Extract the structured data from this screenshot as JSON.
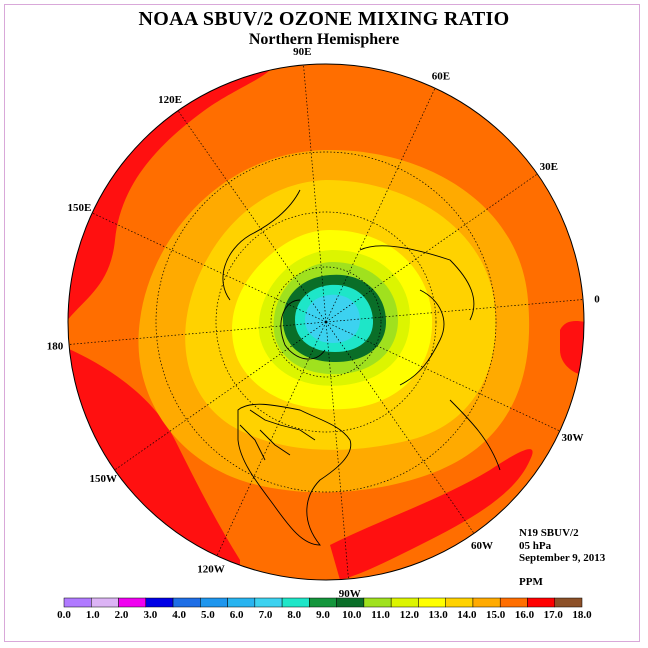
{
  "header": {
    "title": "NOAA SBUV/2 OZONE MIXING RATIO",
    "subtitle": "Northern Hemisphere"
  },
  "info": {
    "instrument": "N19 SBUV/2",
    "level": "05 hPa",
    "date": "September 9, 2013",
    "units": "PPM"
  },
  "longitude_labels": [
    {
      "text": "90E",
      "lon": 90
    },
    {
      "text": "60E",
      "lon": 60
    },
    {
      "text": "30E",
      "lon": 30
    },
    {
      "text": "0",
      "lon": 0
    },
    {
      "text": "30W",
      "lon": -30
    },
    {
      "text": "60W",
      "lon": -60
    },
    {
      "text": "90W",
      "lon": -90
    },
    {
      "text": "120W",
      "lon": -120
    },
    {
      "text": "150W",
      "lon": -150
    },
    {
      "text": "180",
      "lon": 180
    },
    {
      "text": "150E",
      "lon": 150
    },
    {
      "text": "120E",
      "lon": 120
    }
  ],
  "colorbar": {
    "ticks": [
      "0.0",
      "1.0",
      "2.0",
      "3.0",
      "4.0",
      "5.0",
      "6.0",
      "7.0",
      "8.0",
      "9.0",
      "10.0",
      "11.0",
      "12.0",
      "13.0",
      "14.0",
      "15.0",
      "16.0",
      "17.0",
      "18.0"
    ],
    "colors": [
      "#b07aff",
      "#dcb4f5",
      "#f000f0",
      "#0000e6",
      "#1e6ee6",
      "#1e96ee",
      "#28b4f0",
      "#3cd2f0",
      "#1ee6c8",
      "#14963c",
      "#0a6e28",
      "#a0e11e",
      "#dcf500",
      "#ffff00",
      "#ffd200",
      "#ffaa00",
      "#ff6e00",
      "#ff0000",
      "#8c5028"
    ]
  },
  "map": {
    "projection": "north polar stereographic",
    "field_ppm_levels": [
      {
        "value": 16.5,
        "color": "#ff1010"
      },
      {
        "value": 15.5,
        "color": "#ff6e00"
      },
      {
        "value": 14.5,
        "color": "#ffaa00"
      },
      {
        "value": 13.5,
        "color": "#ffd200"
      },
      {
        "value": 12.5,
        "color": "#ffff00"
      },
      {
        "value": 11.5,
        "color": "#dcf500"
      },
      {
        "value": 10.5,
        "color": "#a0e11e"
      },
      {
        "value": 9.5,
        "color": "#0a6e28"
      },
      {
        "value": 8.5,
        "color": "#1ee6c8"
      },
      {
        "value": 7.5,
        "color": "#3cd2f0"
      }
    ]
  }
}
